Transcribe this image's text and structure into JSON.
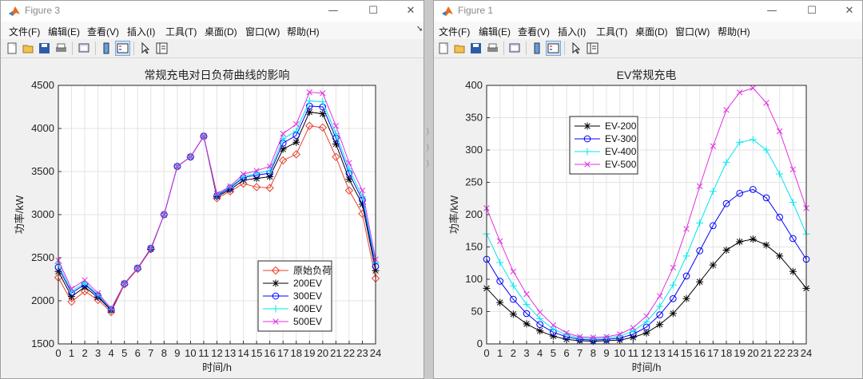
{
  "left_window": {
    "title": "Figure 3",
    "menu": [
      "文件(F)",
      "编辑(E)",
      "查看(V)",
      "插入(I)",
      "工具(T)",
      "桌面(D)",
      "窗口(W)",
      "帮助(H)"
    ]
  },
  "right_window": {
    "title": "Figure 1",
    "menu": [
      "文件(F)",
      "编辑(E)",
      "查看(V)",
      "插入(I)",
      "工具(T)",
      "桌面(D)",
      "窗口(W)",
      "帮助(H)"
    ]
  },
  "window_controls": {
    "minimize": "—",
    "maximize": "☐",
    "close": "✕"
  },
  "colors": {
    "red": "#e8412f",
    "black": "#000000",
    "blue": "#0000ff",
    "cyan": "#00e5ee",
    "magenta": "#e030e0"
  },
  "chart_data": [
    {
      "type": "line",
      "title": "常规充电对日负荷曲线的影响",
      "xlabel": "时间/h",
      "ylabel": "功率/kW",
      "xlim": [
        0,
        24
      ],
      "ylim": [
        1500,
        4500
      ],
      "yticks": [
        1500,
        2000,
        2500,
        3000,
        3500,
        4000,
        4500
      ],
      "grid": true,
      "legend_position": "bottom-right",
      "x": [
        0,
        1,
        2,
        3,
        4,
        5,
        6,
        7,
        8,
        9,
        10,
        11,
        12,
        13,
        14,
        15,
        16,
        17,
        18,
        19,
        20,
        21,
        22,
        23,
        24
      ],
      "series": [
        {
          "name": "原始负荷",
          "color": "#e8412f",
          "marker": "diamond",
          "values": [
            2270,
            1990,
            2110,
            2010,
            1870,
            2190,
            2370,
            2600,
            3000,
            3560,
            3670,
            3910,
            3190,
            3270,
            3360,
            3320,
            3310,
            3630,
            3700,
            4030,
            4010,
            3670,
            3280,
            3010,
            2260
          ]
        },
        {
          "name": "200EV",
          "color": "#000000",
          "marker": "star",
          "values": [
            2340,
            2050,
            2160,
            2040,
            1890,
            2200,
            2380,
            2600,
            3000,
            3560,
            3670,
            3910,
            3210,
            3290,
            3400,
            3420,
            3440,
            3760,
            3840,
            4190,
            4170,
            3820,
            3410,
            3120,
            2350
          ]
        },
        {
          "name": "300EV",
          "color": "#0000ff",
          "marker": "circle",
          "values": [
            2390,
            2090,
            2190,
            2060,
            1900,
            2200,
            2380,
            2610,
            3000,
            3560,
            3670,
            3910,
            3220,
            3310,
            3430,
            3460,
            3480,
            3830,
            3920,
            4260,
            4250,
            3890,
            3480,
            3170,
            2400
          ]
        },
        {
          "name": "400EV",
          "color": "#00e5ee",
          "marker": "plus",
          "values": [
            2430,
            2110,
            2210,
            2070,
            1905,
            2200,
            2380,
            2610,
            3000,
            3560,
            3670,
            3910,
            3230,
            3320,
            3440,
            3480,
            3510,
            3880,
            3970,
            4320,
            4310,
            3940,
            3530,
            3210,
            2440
          ]
        },
        {
          "name": "500EV",
          "color": "#e030e0",
          "marker": "x",
          "values": [
            2470,
            2140,
            2240,
            2090,
            1910,
            2200,
            2380,
            2610,
            3000,
            3560,
            3670,
            3910,
            3240,
            3330,
            3470,
            3510,
            3560,
            3940,
            4050,
            4420,
            4410,
            4030,
            3600,
            3280,
            2480
          ]
        }
      ]
    },
    {
      "type": "line",
      "title": "EV常规充电",
      "xlabel": "时间/h",
      "ylabel": "功率/kW",
      "xlim": [
        0,
        24
      ],
      "ylim": [
        0,
        400
      ],
      "yticks": [
        0,
        50,
        100,
        150,
        200,
        250,
        300,
        350,
        400
      ],
      "grid": true,
      "legend_position": "top-left",
      "x": [
        0,
        1,
        2,
        3,
        4,
        5,
        6,
        7,
        8,
        9,
        10,
        11,
        12,
        13,
        14,
        15,
        16,
        17,
        18,
        19,
        20,
        21,
        22,
        23,
        24
      ],
      "series": [
        {
          "name": "EV-200",
          "color": "#000000",
          "marker": "star",
          "values": [
            86,
            64,
            46,
            31,
            20,
            12,
            7,
            5,
            4,
            5,
            6,
            10,
            17,
            30,
            47,
            70,
            96,
            122,
            145,
            158,
            162,
            153,
            136,
            112,
            86
          ]
        },
        {
          "name": "EV-300",
          "color": "#0000ff",
          "marker": "circle",
          "values": [
            131,
            97,
            69,
            47,
            30,
            18,
            11,
            7,
            6,
            7,
            9,
            15,
            26,
            45,
            70,
            105,
            144,
            183,
            217,
            233,
            239,
            226,
            196,
            163,
            131
          ]
        },
        {
          "name": "EV-400",
          "color": "#00e5ee",
          "marker": "plus",
          "values": [
            170,
            126,
            90,
            61,
            39,
            23,
            14,
            9,
            8,
            9,
            12,
            20,
            34,
            58,
            91,
            136,
            187,
            236,
            281,
            312,
            316,
            300,
            263,
            219,
            170
          ]
        },
        {
          "name": "EV-500",
          "color": "#e030e0",
          "marker": "x",
          "values": [
            210,
            159,
            112,
            77,
            49,
            29,
            17,
            11,
            10,
            11,
            15,
            25,
            43,
            74,
            118,
            178,
            244,
            306,
            362,
            389,
            396,
            373,
            329,
            270,
            210
          ]
        }
      ]
    }
  ]
}
